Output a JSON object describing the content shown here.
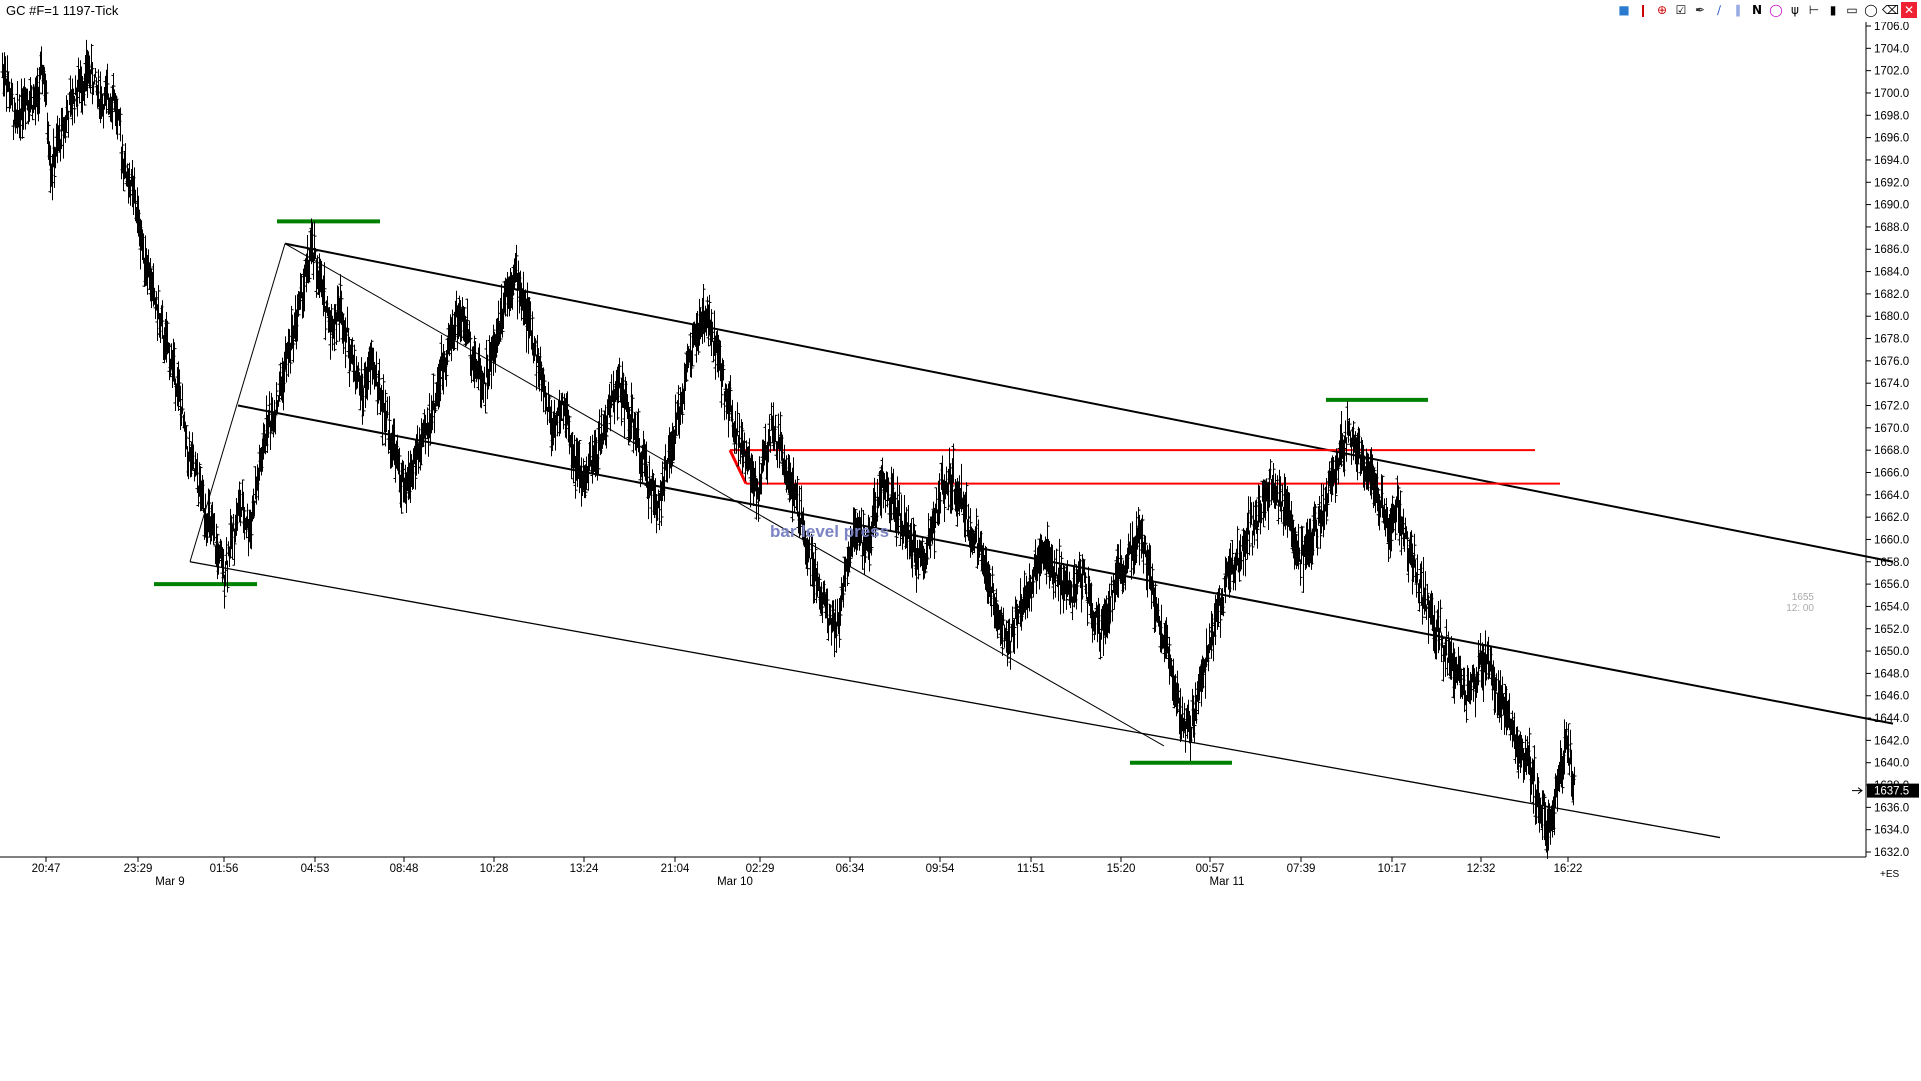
{
  "window": {
    "title": "GC #F=1 1197-Tick"
  },
  "toolbar_icons": [
    "cube-icon",
    "candles-icon",
    "crosshair-icon",
    "checklist-icon",
    "pencil-line-icon",
    "ray-icon",
    "parallel-lines-icon",
    "text-n-icon",
    "circle-icon",
    "fork-icon",
    "pitchfork-icon",
    "bar-icon",
    "box-icon",
    "pin-icon",
    "trash-icon",
    "close-icon"
  ],
  "chart_data": {
    "type": "bar",
    "instrument": "GC #F=1 1197-Tick",
    "ylim": [
      1632.0,
      1706.0
    ],
    "y_ticks": [
      "1706.0",
      "1704.0",
      "1702.0",
      "1700.0",
      "1698.0",
      "1696.0",
      "1694.0",
      "1692.0",
      "1690.0",
      "1688.0",
      "1686.0",
      "1684.0",
      "1682.0",
      "1680.0",
      "1678.0",
      "1676.0",
      "1674.0",
      "1672.0",
      "1670.0",
      "1668.0",
      "1666.0",
      "1664.0",
      "1662.0",
      "1660.0",
      "1658.0",
      "1656.0",
      "1654.0",
      "1652.0",
      "1650.0",
      "1648.0",
      "1646.0",
      "1644.0",
      "1642.0",
      "1640.0",
      "1638.0",
      "1636.0",
      "1634.0",
      "1632.0"
    ],
    "x_ticks": [
      "20:47",
      "23:29",
      "01:56",
      "04:53",
      "08:48",
      "10:28",
      "13:24",
      "21:04",
      "02:29",
      "06:34",
      "09:54",
      "11:51",
      "15:20",
      "00:57",
      "07:39",
      "10:17",
      "12:32",
      "16:22"
    ],
    "date_labels": [
      "Mar 9",
      "Mar 10",
      "Mar 11"
    ],
    "last_price": "1637.5",
    "ghost_label": [
      "1655",
      "12: 00"
    ],
    "corner_label": "+ES",
    "annotations": [
      "bar level press"
    ],
    "price_path": [
      [
        1702,
        4
      ],
      [
        1697,
        10
      ],
      [
        1700,
        10
      ],
      [
        1699,
        10
      ],
      [
        1702,
        8
      ],
      [
        1693,
        8
      ],
      [
        1697,
        12
      ],
      [
        1700,
        12
      ],
      [
        1702,
        14
      ],
      [
        1699,
        14
      ],
      [
        1700,
        10
      ],
      [
        1693,
        12
      ],
      [
        1691,
        8
      ],
      [
        1686,
        10
      ],
      [
        1682,
        10
      ],
      [
        1678,
        10
      ],
      [
        1675,
        12
      ],
      [
        1668,
        12
      ],
      [
        1664,
        14
      ],
      [
        1660,
        12
      ],
      [
        1657,
        10
      ],
      [
        1660,
        8
      ],
      [
        1663,
        8
      ],
      [
        1661,
        10
      ],
      [
        1666,
        10
      ],
      [
        1670,
        8
      ],
      [
        1672,
        10
      ],
      [
        1676,
        10
      ],
      [
        1679,
        8
      ],
      [
        1683,
        10
      ],
      [
        1686,
        8
      ],
      [
        1682,
        10
      ],
      [
        1679,
        10
      ],
      [
        1681,
        8
      ],
      [
        1676,
        12
      ],
      [
        1673,
        10
      ],
      [
        1676,
        10
      ],
      [
        1672,
        10
      ],
      [
        1668,
        12
      ],
      [
        1664,
        10
      ],
      [
        1667,
        10
      ],
      [
        1669,
        10
      ],
      [
        1673,
        12
      ],
      [
        1677,
        10
      ],
      [
        1680,
        10
      ],
      [
        1679,
        10
      ],
      [
        1676,
        8
      ],
      [
        1674,
        10
      ],
      [
        1677,
        10
      ],
      [
        1682,
        10
      ],
      [
        1684,
        10
      ],
      [
        1681,
        10
      ],
      [
        1678,
        8
      ],
      [
        1674,
        10
      ],
      [
        1670,
        10
      ],
      [
        1672,
        12
      ],
      [
        1668,
        8
      ],
      [
        1665,
        10
      ],
      [
        1667,
        12
      ],
      [
        1670,
        10
      ],
      [
        1674,
        12
      ],
      [
        1672,
        10
      ],
      [
        1669,
        10
      ],
      [
        1666,
        10
      ],
      [
        1663,
        10
      ],
      [
        1666,
        10
      ],
      [
        1670,
        10
      ],
      [
        1675,
        10
      ],
      [
        1678,
        8
      ],
      [
        1680,
        12
      ],
      [
        1677,
        10
      ],
      [
        1673,
        10
      ],
      [
        1670,
        10
      ],
      [
        1667,
        10
      ],
      [
        1664,
        10
      ],
      [
        1667,
        8
      ],
      [
        1670,
        8
      ],
      [
        1668,
        10
      ],
      [
        1664,
        12
      ],
      [
        1660,
        12
      ],
      [
        1657,
        10
      ],
      [
        1654,
        10
      ],
      [
        1652,
        12
      ],
      [
        1658,
        10
      ],
      [
        1661,
        8
      ],
      [
        1659,
        10
      ],
      [
        1662,
        8
      ],
      [
        1665,
        10
      ],
      [
        1663,
        10
      ],
      [
        1661,
        10
      ],
      [
        1659,
        10
      ],
      [
        1658,
        10
      ],
      [
        1661,
        10
      ],
      [
        1664,
        8
      ],
      [
        1666,
        8
      ],
      [
        1664,
        10
      ],
      [
        1661,
        10
      ],
      [
        1659,
        10
      ],
      [
        1656,
        10
      ],
      [
        1653,
        10
      ],
      [
        1651,
        10
      ],
      [
        1654,
        10
      ],
      [
        1656,
        12
      ],
      [
        1659,
        10
      ],
      [
        1658,
        10
      ],
      [
        1656,
        10
      ],
      [
        1655,
        10
      ],
      [
        1657,
        10
      ],
      [
        1654,
        10
      ],
      [
        1652,
        10
      ],
      [
        1655,
        10
      ],
      [
        1657,
        10
      ],
      [
        1659,
        8
      ],
      [
        1661,
        10
      ],
      [
        1657,
        10
      ],
      [
        1653,
        10
      ],
      [
        1648,
        12
      ],
      [
        1644,
        10
      ],
      [
        1643,
        10
      ],
      [
        1647,
        10
      ],
      [
        1651,
        10
      ],
      [
        1655,
        10
      ],
      [
        1657,
        10
      ],
      [
        1659,
        10
      ],
      [
        1661,
        10
      ],
      [
        1663,
        10
      ],
      [
        1665,
        10
      ],
      [
        1663,
        10
      ],
      [
        1661,
        10
      ],
      [
        1658,
        10
      ],
      [
        1660,
        10
      ],
      [
        1662,
        10
      ],
      [
        1665,
        10
      ],
      [
        1668,
        10
      ],
      [
        1669,
        8
      ],
      [
        1668,
        10
      ],
      [
        1666,
        10
      ],
      [
        1664,
        10
      ],
      [
        1661,
        10
      ],
      [
        1663,
        8
      ],
      [
        1660,
        10
      ],
      [
        1657,
        10
      ],
      [
        1654,
        10
      ],
      [
        1652,
        10
      ],
      [
        1650,
        10
      ],
      [
        1648,
        12
      ],
      [
        1646,
        10
      ],
      [
        1648,
        10
      ],
      [
        1649,
        10
      ],
      [
        1646,
        10
      ],
      [
        1644,
        10
      ],
      [
        1642,
        10
      ],
      [
        1640,
        10
      ],
      [
        1637,
        10
      ],
      [
        1634,
        10
      ],
      [
        1637,
        8
      ],
      [
        1642,
        10
      ],
      [
        1638,
        8
      ]
    ],
    "trendlines": [
      {
        "name": "upper-channel-line",
        "from": [
          "04:00",
          1686.5
        ],
        "to": [
          "end",
          1658.0
        ],
        "color": "#000000"
      },
      {
        "name": "middle-channel-line",
        "from": [
          "01:56",
          1672.0
        ],
        "to": [
          "end",
          1643.5
        ],
        "color": "#000000"
      },
      {
        "name": "lower-channel-line",
        "from": [
          "00:10",
          1658.0
        ],
        "to": [
          "end",
          1630.5
        ],
        "color": "#000000"
      },
      {
        "name": "rise-swing-line",
        "from": [
          "00:10",
          1658.0
        ],
        "to": [
          "04:00",
          1686.5
        ],
        "color": "#000000"
      },
      {
        "name": "fall-swing-line",
        "from": [
          "04:00",
          1686.5
        ],
        "to": [
          "15:20",
          1641.5
        ],
        "color": "#000000"
      }
    ],
    "levels": [
      {
        "name": "press-level-upper",
        "price": 1668.0,
        "color": "#ff0000"
      },
      {
        "name": "press-level-lower",
        "price": 1665.0,
        "color": "#ff0000"
      }
    ],
    "swing_marks": [
      {
        "name": "swing-high-1",
        "price": 1688.5,
        "color": "#008000"
      },
      {
        "name": "swing-low-1",
        "price": 1656.0,
        "color": "#008000"
      },
      {
        "name": "swing-high-2",
        "price": 1672.5,
        "color": "#008000"
      },
      {
        "name": "swing-low-2",
        "price": 1640.0,
        "color": "#008000"
      }
    ],
    "grid": false
  },
  "colors": {
    "bar": "#000000",
    "support": "#008000",
    "resistance": "#ff0000",
    "annotation": "#7b84c4"
  }
}
